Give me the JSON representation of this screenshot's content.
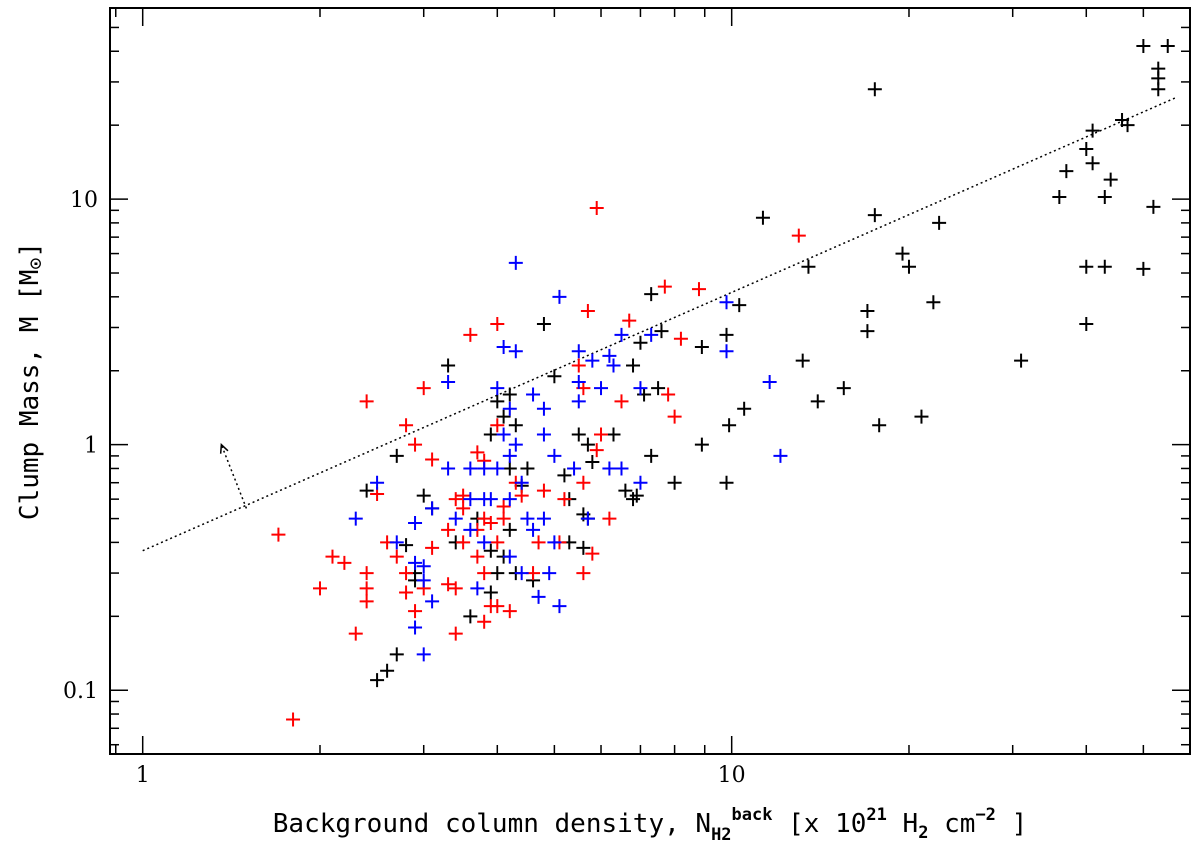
{
  "chart_data": {
    "type": "scatter",
    "x_scale": "log",
    "y_scale": "log",
    "xlim": [
      0.88,
      60
    ],
    "ylim": [
      0.055,
      60
    ],
    "grid": false,
    "xlabel": {
      "main": "Background column density, N",
      "sub": "H2",
      "sup": "back",
      "mid": " [x 10",
      "exp": "21",
      "h": " H",
      "h_sub": "2",
      "unit": " cm",
      "unit_exp": "−2",
      "end": " ]"
    },
    "ylabel": {
      "main": "Clump Mass, M [M",
      "sym": "⊙",
      "end": "]"
    },
    "x_ticks": [
      {
        "value": 1,
        "label": "1"
      },
      {
        "value": 10,
        "label": "10"
      }
    ],
    "y_ticks": [
      {
        "value": 0.1,
        "label": "0.1"
      },
      {
        "value": 1,
        "label": "1"
      },
      {
        "value": 10,
        "label": "10"
      }
    ],
    "fit_line": {
      "style": "dotted",
      "points": [
        [
          1.0,
          0.37
        ],
        [
          57,
          26
        ]
      ]
    },
    "arrow": {
      "from": [
        1.5,
        0.55
      ],
      "to": [
        1.36,
        1.0
      ]
    },
    "series": [
      {
        "name": "black",
        "color": "#000000",
        "points": [
          [
            50,
            42
          ],
          [
            55,
            42
          ],
          [
            53,
            34
          ],
          [
            53,
            31
          ],
          [
            53,
            28
          ],
          [
            46,
            21
          ],
          [
            47,
            20
          ],
          [
            41,
            19
          ],
          [
            40,
            16
          ],
          [
            41,
            14
          ],
          [
            37,
            13
          ],
          [
            44,
            12
          ],
          [
            36,
            10.2
          ],
          [
            43,
            10.2
          ],
          [
            52,
            9.3
          ],
          [
            17.5,
            28
          ],
          [
            11.3,
            8.4
          ],
          [
            17.5,
            8.6
          ],
          [
            22.5,
            8.0
          ],
          [
            19.5,
            6.0
          ],
          [
            20,
            5.3
          ],
          [
            13.5,
            5.3
          ],
          [
            40,
            5.3
          ],
          [
            43,
            5.3
          ],
          [
            50,
            5.2
          ],
          [
            22,
            3.8
          ],
          [
            17,
            3.5
          ],
          [
            40,
            3.1
          ],
          [
            17,
            2.9
          ],
          [
            10.3,
            3.7
          ],
          [
            9.8,
            2.8
          ],
          [
            13.2,
            2.2
          ],
          [
            31,
            2.2
          ],
          [
            15.5,
            1.7
          ],
          [
            14,
            1.5
          ],
          [
            21,
            1.3
          ],
          [
            17.8,
            1.2
          ],
          [
            10.5,
            1.4
          ],
          [
            9.9,
            1.2
          ],
          [
            8.9,
            1.0
          ],
          [
            9.8,
            0.7
          ],
          [
            8.0,
            0.7
          ],
          [
            8.9,
            2.5
          ],
          [
            6.8,
            2.1
          ],
          [
            7.0,
            2.6
          ],
          [
            7.6,
            2.9
          ],
          [
            7.1,
            1.6
          ],
          [
            7.5,
            1.7
          ],
          [
            6.3,
            1.1
          ],
          [
            7.3,
            4.1
          ],
          [
            7.3,
            0.9
          ],
          [
            6.8,
            0.6
          ],
          [
            5.5,
            1.1
          ],
          [
            5.7,
            1.0
          ],
          [
            5.8,
            0.85
          ],
          [
            5.2,
            0.75
          ],
          [
            5.7,
            0.5
          ],
          [
            5.6,
            0.38
          ],
          [
            5.3,
            0.4
          ],
          [
            4.8,
            3.1
          ],
          [
            5.0,
            1.9
          ],
          [
            4.5,
            0.8
          ],
          [
            5.3,
            0.6
          ],
          [
            4.2,
            1.6
          ],
          [
            4.1,
            1.3
          ],
          [
            4.0,
            1.5
          ],
          [
            4.3,
            1.2
          ],
          [
            3.9,
            1.1
          ],
          [
            4.2,
            0.8
          ],
          [
            4.4,
            0.68
          ],
          [
            4.2,
            0.45
          ],
          [
            4.1,
            0.35
          ],
          [
            3.9,
            0.25
          ],
          [
            3.6,
            0.2
          ],
          [
            3.7,
            0.5
          ],
          [
            4.3,
            0.3
          ],
          [
            4.6,
            0.28
          ],
          [
            3.4,
            0.4
          ],
          [
            3.3,
            2.1
          ],
          [
            3.0,
            0.62
          ],
          [
            2.7,
            0.9
          ],
          [
            2.4,
            0.65
          ],
          [
            2.8,
            0.39
          ],
          [
            2.9,
            0.3
          ],
          [
            2.7,
            0.14
          ],
          [
            2.5,
            0.11
          ],
          [
            2.6,
            0.12
          ],
          [
            3.1,
            0.55
          ],
          [
            2.9,
            0.28
          ],
          [
            3.9,
            0.37
          ],
          [
            4.0,
            0.3
          ],
          [
            5.6,
            0.52
          ],
          [
            6.6,
            0.65
          ],
          [
            6.9,
            0.62
          ]
        ]
      },
      {
        "name": "red",
        "color": "#ff0000",
        "points": [
          [
            5.9,
            9.2
          ],
          [
            13.0,
            7.1
          ],
          [
            8.8,
            4.3
          ],
          [
            7.7,
            4.4
          ],
          [
            6.7,
            3.2
          ],
          [
            5.7,
            3.5
          ],
          [
            5.5,
            2.1
          ],
          [
            5.6,
            1.7
          ],
          [
            6.5,
            1.5
          ],
          [
            7.8,
            1.6
          ],
          [
            8.0,
            1.3
          ],
          [
            8.2,
            2.7
          ],
          [
            6.0,
            1.1
          ],
          [
            5.9,
            0.95
          ],
          [
            5.6,
            0.7
          ],
          [
            5.2,
            0.6
          ],
          [
            4.8,
            0.65
          ],
          [
            5.1,
            0.4
          ],
          [
            4.7,
            0.4
          ],
          [
            4.6,
            0.3
          ],
          [
            5.6,
            0.3
          ],
          [
            6.2,
            0.5
          ],
          [
            5.8,
            0.36
          ],
          [
            4.3,
            0.7
          ],
          [
            4.4,
            0.62
          ],
          [
            4.0,
            1.2
          ],
          [
            4.1,
            0.56
          ],
          [
            3.8,
            0.5
          ],
          [
            3.9,
            0.48
          ],
          [
            4.0,
            0.4
          ],
          [
            3.7,
            0.45
          ],
          [
            3.8,
            0.3
          ],
          [
            3.9,
            0.22
          ],
          [
            3.4,
            0.26
          ],
          [
            3.5,
            0.55
          ],
          [
            3.4,
            0.6
          ],
          [
            3.7,
            0.93
          ],
          [
            3.8,
            0.86
          ],
          [
            3.3,
            0.45
          ],
          [
            3.1,
            0.38
          ],
          [
            3.5,
            0.4
          ],
          [
            3.3,
            0.27
          ],
          [
            3.0,
            0.26
          ],
          [
            2.8,
            0.3
          ],
          [
            3.1,
            0.87
          ],
          [
            2.9,
            1.0
          ],
          [
            3.0,
            1.7
          ],
          [
            2.8,
            1.2
          ],
          [
            2.6,
            0.4
          ],
          [
            2.7,
            0.35
          ],
          [
            2.5,
            0.63
          ],
          [
            2.4,
            1.5
          ],
          [
            2.4,
            0.26
          ],
          [
            2.4,
            0.23
          ],
          [
            2.2,
            0.33
          ],
          [
            2.3,
            0.17
          ],
          [
            2.1,
            0.35
          ],
          [
            2.0,
            0.26
          ],
          [
            2.8,
            0.25
          ],
          [
            2.9,
            0.21
          ],
          [
            3.4,
            0.17
          ],
          [
            3.8,
            0.19
          ],
          [
            4.0,
            0.22
          ],
          [
            4.2,
            0.21
          ],
          [
            3.6,
            2.8
          ],
          [
            3.7,
            0.35
          ],
          [
            4.0,
            3.1
          ],
          [
            1.7,
            0.43
          ],
          [
            1.8,
            0.076
          ],
          [
            2.4,
            0.3
          ],
          [
            4.1,
            0.5
          ],
          [
            3.5,
            0.62
          ]
        ]
      },
      {
        "name": "blue",
        "color": "#0000ff",
        "points": [
          [
            4.3,
            5.5
          ],
          [
            5.1,
            4.0
          ],
          [
            4.1,
            2.5
          ],
          [
            4.3,
            2.4
          ],
          [
            5.5,
            2.4
          ],
          [
            6.2,
            2.3
          ],
          [
            5.8,
            2.2
          ],
          [
            7.3,
            2.8
          ],
          [
            6.5,
            2.8
          ],
          [
            9.8,
            3.8
          ],
          [
            9.8,
            2.4
          ],
          [
            11.6,
            1.8
          ],
          [
            12.1,
            0.9
          ],
          [
            4.0,
            1.7
          ],
          [
            4.2,
            1.4
          ],
          [
            4.6,
            1.6
          ],
          [
            4.8,
            1.4
          ],
          [
            5.5,
            1.5
          ],
          [
            5.5,
            1.8
          ],
          [
            6.0,
            1.7
          ],
          [
            7.0,
            1.7
          ],
          [
            4.1,
            1.1
          ],
          [
            4.3,
            1.0
          ],
          [
            4.8,
            1.1
          ],
          [
            5.0,
            0.9
          ],
          [
            5.4,
            0.8
          ],
          [
            6.2,
            0.8
          ],
          [
            6.5,
            0.8
          ],
          [
            7.0,
            0.7
          ],
          [
            3.6,
            0.8
          ],
          [
            3.8,
            0.8
          ],
          [
            4.0,
            0.8
          ],
          [
            4.2,
            0.9
          ],
          [
            4.4,
            0.7
          ],
          [
            3.6,
            0.6
          ],
          [
            3.8,
            0.6
          ],
          [
            4.2,
            0.6
          ],
          [
            4.5,
            0.5
          ],
          [
            4.8,
            0.5
          ],
          [
            5.0,
            0.4
          ],
          [
            3.3,
            0.8
          ],
          [
            3.4,
            0.5
          ],
          [
            3.1,
            0.55
          ],
          [
            2.9,
            0.48
          ],
          [
            2.7,
            0.4
          ],
          [
            2.5,
            0.7
          ],
          [
            2.3,
            0.5
          ],
          [
            3.3,
            1.8
          ],
          [
            3.0,
            0.32
          ],
          [
            3.0,
            0.28
          ],
          [
            2.9,
            0.18
          ],
          [
            3.0,
            0.14
          ],
          [
            2.9,
            0.33
          ],
          [
            3.6,
            0.45
          ],
          [
            3.8,
            0.4
          ],
          [
            4.2,
            0.35
          ],
          [
            4.4,
            0.3
          ],
          [
            4.9,
            0.3
          ],
          [
            3.7,
            0.26
          ],
          [
            4.7,
            0.24
          ],
          [
            5.1,
            0.22
          ],
          [
            3.9,
            0.6
          ],
          [
            4.6,
            0.45
          ],
          [
            6.3,
            2.1
          ],
          [
            5.7,
            0.5
          ],
          [
            3.1,
            0.23
          ]
        ]
      }
    ]
  }
}
